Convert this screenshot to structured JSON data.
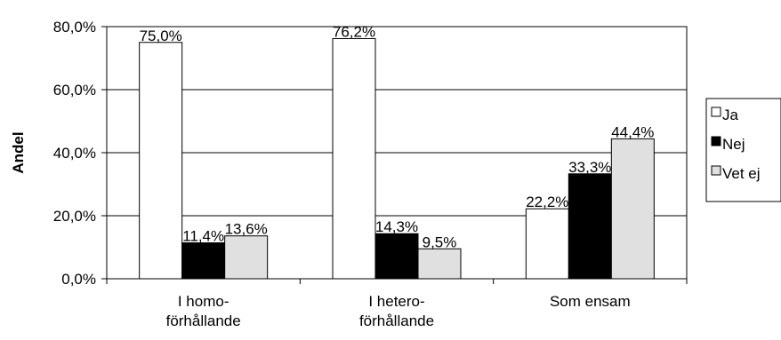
{
  "chart_data": {
    "type": "bar",
    "categories": [
      [
        "I homo-",
        "förhållande"
      ],
      [
        "I hetero-",
        "förhållande"
      ],
      [
        "Som ensam"
      ]
    ],
    "series": [
      {
        "name": "Ja",
        "values": [
          75.0,
          76.2,
          22.2
        ],
        "labels": [
          "75,0%",
          "76,2%",
          "22,2%"
        ],
        "color": "#ffffff"
      },
      {
        "name": "Nej",
        "values": [
          11.4,
          14.3,
          33.3
        ],
        "labels": [
          "11,4%",
          "14,3%",
          "33,3%"
        ],
        "color": "#000000"
      },
      {
        "name": "Vet ej",
        "values": [
          13.6,
          9.5,
          44.4
        ],
        "labels": [
          "13,6%",
          "9,5%",
          "44,4%"
        ],
        "color": "#e0e0e0"
      }
    ],
    "ylabel": "Andel",
    "ylim": [
      0,
      80
    ],
    "yticks": [
      0,
      20,
      40,
      60,
      80
    ],
    "ytick_labels": [
      "0,0%",
      "20,0%",
      "40,0%",
      "60,0%",
      "80,0%"
    ],
    "grid": true,
    "legend_position": "right"
  }
}
